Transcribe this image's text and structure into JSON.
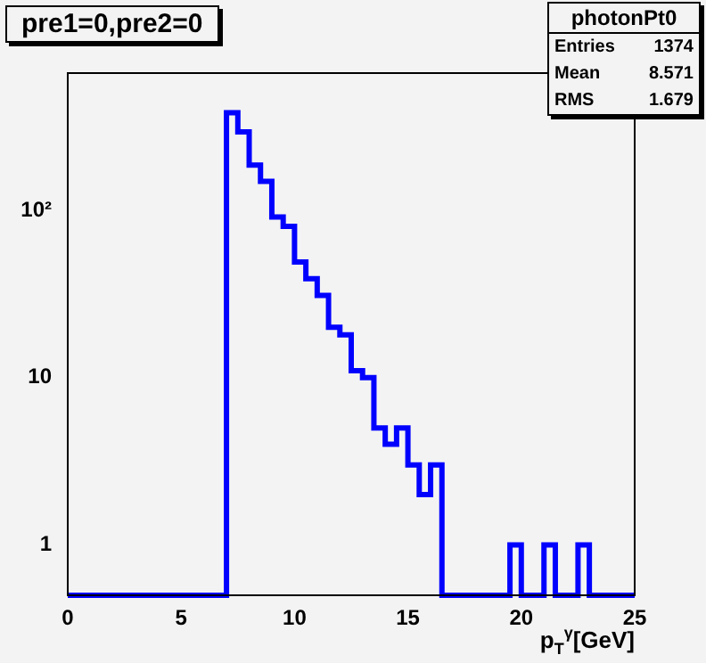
{
  "chart_data": {
    "type": "histogram",
    "title": "pre1=0,pre2=0",
    "xlabel": "p$_{T}$$^{γ}$[GeV]",
    "annotations": [
      "photonPt0",
      "Entries 1374",
      "Mean 8.571",
      "RMS 1.679"
    ],
    "bins": [
      0,
      0.5,
      1,
      1.5,
      2,
      2.5,
      3,
      3.5,
      4,
      4.5,
      5,
      5.5,
      6,
      6.5,
      7,
      7.5,
      8,
      8.5,
      9,
      9.5,
      10,
      10.5,
      11,
      11.5,
      12,
      12.5,
      13,
      13.5,
      14,
      14.5,
      15,
      15.5,
      16,
      16.5,
      17,
      17.5,
      18,
      18.5,
      19,
      19.5,
      20,
      20.5,
      21,
      21.5,
      22,
      22.5,
      23,
      23.5,
      24,
      24.5,
      25
    ],
    "values": [
      null,
      null,
      null,
      null,
      null,
      null,
      null,
      null,
      null,
      null,
      null,
      null,
      null,
      null,
      383,
      294,
      186,
      149,
      91,
      80,
      49,
      39,
      31,
      20,
      18,
      11,
      10,
      5,
      4,
      5,
      3,
      2,
      3,
      null,
      null,
      null,
      null,
      null,
      null,
      1,
      null,
      null,
      1,
      null,
      null,
      1,
      null,
      null,
      null,
      null
    ],
    "color": "#0000ff",
    "log": "y",
    "grid": false,
    "legend": false,
    "xlim": [
      0,
      25
    ],
    "xticks": [
      0,
      5,
      10,
      15,
      20,
      25
    ],
    "ylim": [
      0.5,
      660
    ],
    "yticks": [
      1,
      10,
      {
        "value": 100,
        "label": "10²"
      }
    ]
  }
}
